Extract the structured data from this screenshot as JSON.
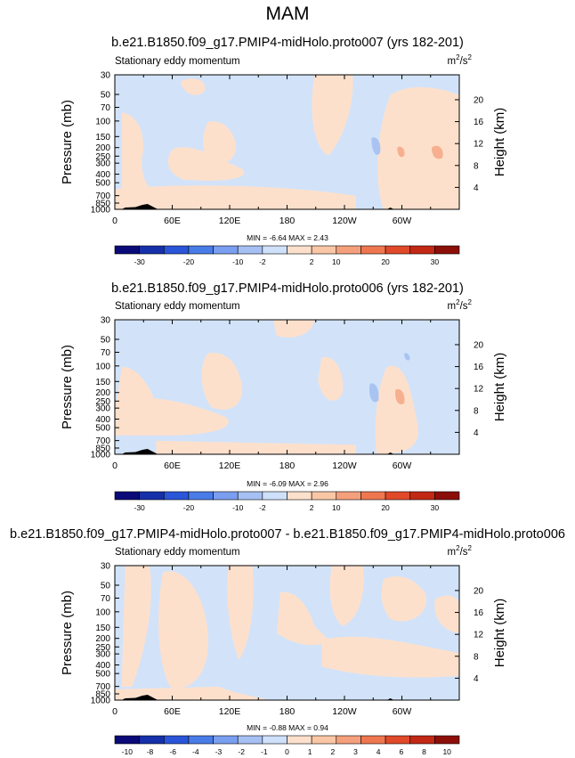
{
  "page_title": "MAM",
  "colorbar_colors": {
    "full_field": [
      "#0a0a78",
      "#1530a8",
      "#2a55d8",
      "#4a7ce8",
      "#7a9ef0",
      "#a6c0f4",
      "#cfe0fa",
      "#fde0cc",
      "#fac7a6",
      "#f5a07c",
      "#ee7750",
      "#e04a2a",
      "#c22814",
      "#8c0e08"
    ],
    "difference": [
      "#0a0a78",
      "#1530a8",
      "#2a55d8",
      "#4a7ce8",
      "#7a9ef0",
      "#a6c0f4",
      "#cfe0fa",
      "#fde0cc",
      "#fac7a6",
      "#f5a07c",
      "#ee7750",
      "#e04a2a",
      "#c22814",
      "#8c0e08"
    ]
  },
  "chart_data": [
    {
      "type": "heatmap",
      "title": "b.e21.B1850.f09_g17.PMIP4-midHolo.proto007 (yrs 182-201)",
      "subtitle_left": "Stationary eddy momentum",
      "units": "m²/s²",
      "units_base": "m",
      "units_base_sup": "2",
      "units_sep": "/s",
      "units_sep_sup": "2",
      "ylabel": "Pressure (mb)",
      "ylabel_right": "Height (km)",
      "x_ticks": [
        "0",
        "60E",
        "120E",
        "180",
        "120W",
        "60W"
      ],
      "y_ticks": [
        "30",
        "50",
        "70",
        "100",
        "150",
        "200",
        "250",
        "300",
        "400",
        "500",
        "700",
        "850",
        "1000"
      ],
      "y_right_ticks": [
        "20",
        "16",
        "12",
        "8",
        "4"
      ],
      "stats": "MIN = -6.64  MAX =  2.43",
      "colorbar_labels": [
        "-30",
        "-20",
        "-10",
        "-2",
        "2",
        "10",
        "20",
        "30"
      ],
      "colorbar_levels": [
        -40,
        -30,
        -25,
        -20,
        -15,
        -10,
        -5,
        -2,
        2,
        5,
        10,
        15,
        20,
        25,
        30
      ]
    },
    {
      "type": "heatmap",
      "title": "b.e21.B1850.f09_g17.PMIP4-midHolo.proto006 (yrs 182-201)",
      "subtitle_left": "Stationary eddy momentum",
      "units": "m²/s²",
      "units_base": "m",
      "units_base_sup": "2",
      "units_sep": "/s",
      "units_sep_sup": "2",
      "ylabel": "Pressure (mb)",
      "ylabel_right": "Height (km)",
      "x_ticks": [
        "0",
        "60E",
        "120E",
        "180",
        "120W",
        "60W"
      ],
      "y_ticks": [
        "30",
        "50",
        "70",
        "100",
        "150",
        "200",
        "250",
        "300",
        "400",
        "500",
        "700",
        "850",
        "1000"
      ],
      "y_right_ticks": [
        "20",
        "16",
        "12",
        "8",
        "4"
      ],
      "stats": "MIN = -6.09  MAX =  2.96",
      "colorbar_labels": [
        "-30",
        "-20",
        "-10",
        "-2",
        "2",
        "10",
        "20",
        "30"
      ],
      "colorbar_levels": [
        -40,
        -30,
        -25,
        -20,
        -15,
        -10,
        -5,
        -2,
        2,
        5,
        10,
        15,
        20,
        25,
        30
      ]
    },
    {
      "type": "heatmap",
      "title": "b.e21.B1850.f09_g17.PMIP4-midHolo.proto007 - b.e21.B1850.f09_g17.PMIP4-midHolo.proto006",
      "subtitle_left": "Stationary eddy momentum",
      "units": "m²/s²",
      "units_base": "m",
      "units_base_sup": "2",
      "units_sep": "/s",
      "units_sep_sup": "2",
      "ylabel": "Pressure (mb)",
      "ylabel_right": "Height (km)",
      "x_ticks": [
        "0",
        "60E",
        "120E",
        "180",
        "120W",
        "60W"
      ],
      "y_ticks": [
        "30",
        "50",
        "70",
        "100",
        "150",
        "200",
        "250",
        "300",
        "400",
        "500",
        "700",
        "850",
        "1000"
      ],
      "y_right_ticks": [
        "20",
        "16",
        "12",
        "8",
        "4"
      ],
      "stats": "MIN = -0.88  MAX =  0.94",
      "colorbar_labels": [
        "-10",
        "-8",
        "-6",
        "-4",
        "-3",
        "-2",
        "-1",
        "0",
        "1",
        "2",
        "3",
        "4",
        "6",
        "8",
        "10"
      ],
      "colorbar_levels": [
        -12,
        -10,
        -8,
        -6,
        -4,
        -3,
        -2,
        -1,
        0,
        1,
        2,
        3,
        4,
        6,
        8,
        10,
        12
      ]
    }
  ]
}
